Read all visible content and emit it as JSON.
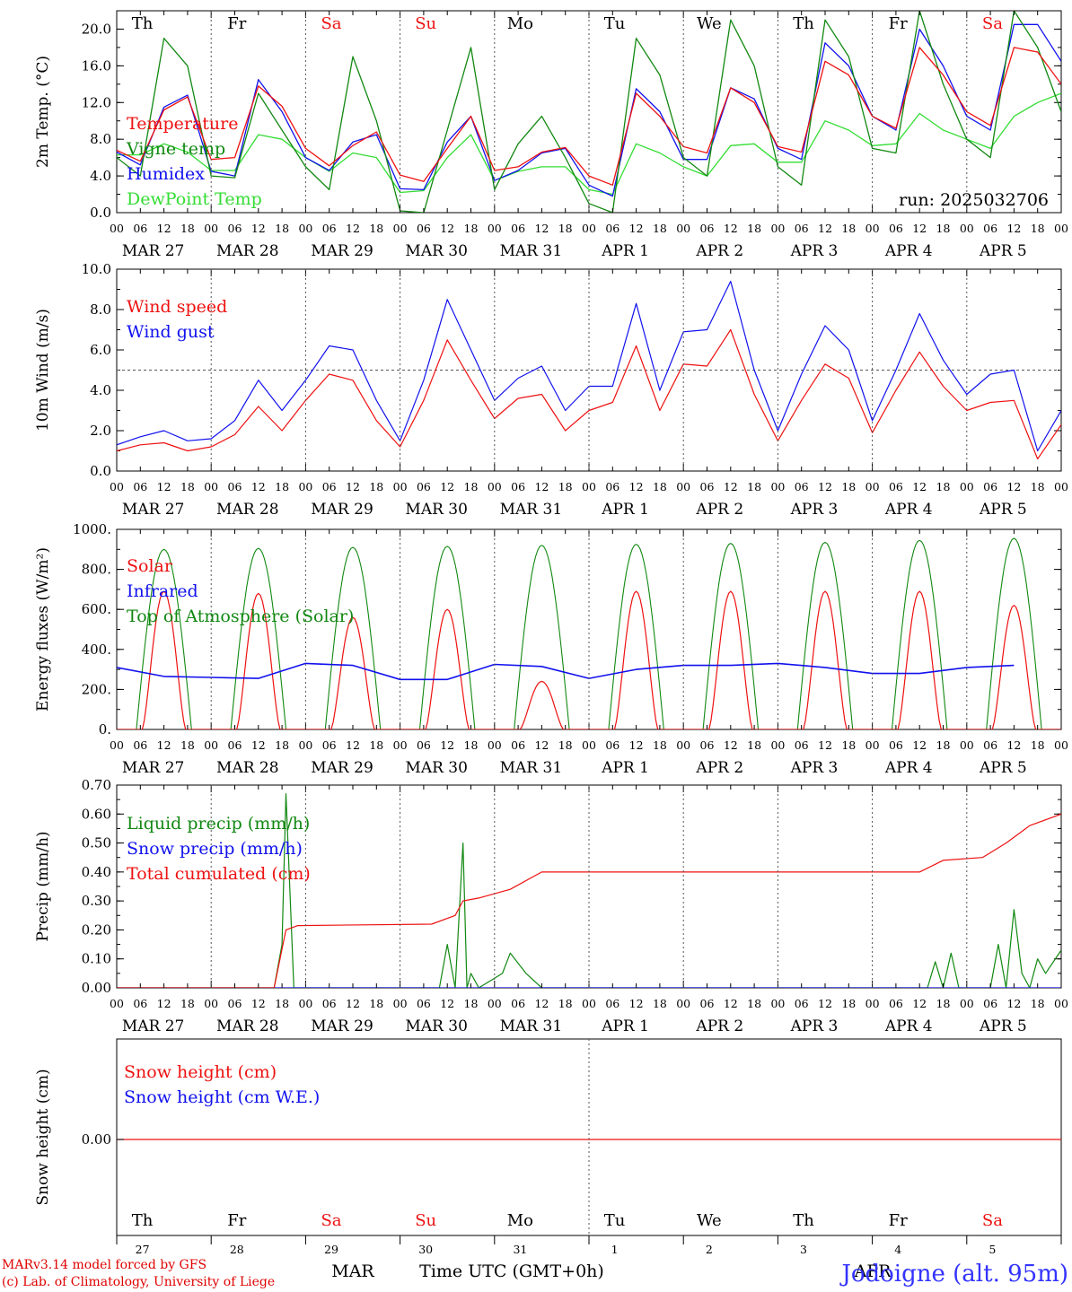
{
  "colors": {
    "red": "#ee1111",
    "green": "#118811",
    "blue": "#1111ee",
    "lightgreen": "#33dd33",
    "weekend": "#ee1111",
    "grid": "#555555"
  },
  "run_label": "run: 2025032706",
  "hours": [
    "00",
    "06",
    "12",
    "18"
  ],
  "date_labels": [
    "MAR 27",
    "MAR 28",
    "MAR 29",
    "MAR 30",
    "MAR 31",
    "APR  1",
    "APR  2",
    "APR  3",
    "APR  4",
    "APR  5"
  ],
  "days": [
    {
      "name": "Th",
      "num": "27",
      "weekend": false
    },
    {
      "name": "Fr",
      "num": "28",
      "weekend": false
    },
    {
      "name": "Sa",
      "num": "29",
      "weekend": true
    },
    {
      "name": "Su",
      "num": "30",
      "weekend": true
    },
    {
      "name": "Mo",
      "num": "31",
      "weekend": false
    },
    {
      "name": "Tu",
      "num": "1",
      "weekend": false
    },
    {
      "name": "We",
      "num": "2",
      "weekend": false
    },
    {
      "name": "Th",
      "num": "3",
      "weekend": false
    },
    {
      "name": "Fr",
      "num": "4",
      "weekend": false
    },
    {
      "name": "Sa",
      "num": "5",
      "weekend": true
    }
  ],
  "footer": {
    "model": "MARv3.14 model forced by GFS",
    "credit": "(c) Lab. of Climatology, University of Liege",
    "month_mar": "MAR",
    "month_apr": "APR",
    "xtitle": "Time UTC (GMT+0h)",
    "location": "Jodoigne (alt. 95m)"
  },
  "chart_data": [
    {
      "type": "line",
      "ylabel": "2m Temp. (°C)",
      "ylim": [
        0,
        22
      ],
      "yticks": [
        "0.0",
        "4.0",
        "8.0",
        "12.0",
        "16.0",
        "20.0"
      ],
      "ytick_values": [
        0,
        4,
        8,
        12,
        16,
        20
      ],
      "legend": [
        {
          "label": "Temperature",
          "color": "red"
        },
        {
          "label": "Vigne temp",
          "color": "green"
        },
        {
          "label": "Humidex",
          "color": "blue"
        },
        {
          "label": "DewPoint Temp",
          "color": "lightgreen"
        }
      ],
      "x_hours": [
        0,
        6,
        12,
        18,
        24,
        30,
        36,
        42,
        48,
        54,
        60,
        66,
        72,
        78,
        84,
        90,
        96,
        102,
        108,
        114,
        120,
        126,
        132,
        138,
        144,
        150,
        156,
        162,
        168,
        174,
        180,
        186,
        192,
        198,
        204,
        210,
        216,
        222,
        228,
        234,
        240
      ],
      "series": [
        {
          "name": "Temperature",
          "color": "red",
          "values": [
            6.8,
            5.6,
            11.2,
            12.6,
            5.8,
            6.0,
            13.8,
            11.6,
            7.0,
            5.1,
            7.3,
            8.8,
            4.1,
            3.4,
            7.0,
            10.5,
            4.6,
            5.0,
            6.6,
            7.1,
            4.0,
            3.0,
            13.0,
            10.5,
            7.2,
            6.5,
            13.6,
            12.0,
            7.2,
            6.6,
            16.5,
            15.0,
            10.5,
            9.2,
            18.0,
            15.0,
            11.0,
            9.5,
            18.0,
            17.5,
            14.0
          ]
        },
        {
          "name": "Vigne temp",
          "color": "green",
          "values": [
            6.0,
            4.0,
            19.0,
            16.0,
            4.0,
            3.8,
            13.0,
            9.0,
            5.0,
            2.5,
            17.0,
            10.0,
            0.2,
            0.0,
            9.0,
            18.0,
            2.5,
            7.5,
            10.5,
            6.0,
            1.0,
            0.0,
            19.0,
            15.0,
            6.0,
            4.0,
            21.0,
            16.0,
            5.0,
            3.0,
            21.0,
            17.0,
            7.0,
            6.5,
            22.0,
            14.0,
            8.0,
            6.0,
            22.0,
            18.0,
            11.0
          ]
        },
        {
          "name": "Humidex",
          "color": "blue",
          "values": [
            6.6,
            5.2,
            11.5,
            12.8,
            4.5,
            4.0,
            14.5,
            11.0,
            6.0,
            4.6,
            7.7,
            8.5,
            2.6,
            2.5,
            7.7,
            10.5,
            3.5,
            4.6,
            6.5,
            7.0,
            3.0,
            1.8,
            13.5,
            11.0,
            5.8,
            5.8,
            13.6,
            12.4,
            7.0,
            5.8,
            18.5,
            16.0,
            10.5,
            9.0,
            20.0,
            16.0,
            10.5,
            9.0,
            20.5,
            20.5,
            16.5
          ]
        },
        {
          "name": "DewPoint Temp",
          "color": "lightgreen",
          "values": [
            6.3,
            6.3,
            7.5,
            6.6,
            4.6,
            4.6,
            8.5,
            8.0,
            6.0,
            4.5,
            6.5,
            6.0,
            2.2,
            2.4,
            6.0,
            8.5,
            3.5,
            4.5,
            5.0,
            5.0,
            2.5,
            2.0,
            7.5,
            6.5,
            5.0,
            4.0,
            7.3,
            7.5,
            5.5,
            5.5,
            10.0,
            9.0,
            7.3,
            7.5,
            10.8,
            9.0,
            8.0,
            7.0,
            10.5,
            12.0,
            13.0
          ]
        }
      ]
    },
    {
      "type": "line",
      "ylabel": "10m Wind (m/s)",
      "ylim": [
        0,
        10
      ],
      "yticks": [
        "0.0",
        "2.0",
        "4.0",
        "6.0",
        "8.0",
        "10.0"
      ],
      "ytick_values": [
        0,
        2,
        4,
        6,
        8,
        10
      ],
      "reference_line": 5.0,
      "legend": [
        {
          "label": "Wind speed",
          "color": "red"
        },
        {
          "label": "Wind gust",
          "color": "blue"
        }
      ],
      "x_hours": [
        0,
        6,
        12,
        18,
        24,
        30,
        36,
        42,
        48,
        54,
        60,
        66,
        72,
        78,
        84,
        90,
        96,
        102,
        108,
        114,
        120,
        126,
        132,
        138,
        144,
        150,
        156,
        162,
        168,
        174,
        180,
        186,
        192,
        198,
        204,
        210,
        216,
        222,
        228,
        234,
        240
      ],
      "series": [
        {
          "name": "Wind speed",
          "color": "red",
          "values": [
            1.0,
            1.3,
            1.4,
            1.0,
            1.2,
            1.8,
            3.2,
            2.0,
            3.5,
            4.8,
            4.5,
            2.5,
            1.2,
            3.5,
            6.5,
            4.5,
            2.6,
            3.6,
            3.8,
            2.0,
            3.0,
            3.4,
            6.2,
            3.0,
            5.3,
            5.2,
            7.0,
            3.8,
            1.5,
            3.5,
            5.3,
            4.6,
            1.9,
            4.0,
            5.9,
            4.2,
            3.0,
            3.4,
            3.5,
            0.6,
            2.3
          ]
        },
        {
          "name": "Wind gust",
          "color": "blue",
          "values": [
            1.3,
            1.7,
            2.0,
            1.5,
            1.6,
            2.5,
            4.5,
            3.0,
            4.5,
            6.2,
            6.0,
            3.5,
            1.5,
            4.5,
            8.5,
            6.0,
            3.5,
            4.6,
            5.2,
            3.0,
            4.2,
            4.2,
            8.3,
            4.0,
            6.9,
            7.0,
            9.4,
            5.0,
            2.0,
            4.8,
            7.2,
            6.0,
            2.5,
            5.0,
            7.8,
            5.5,
            3.8,
            4.8,
            5.0,
            1.0,
            3.0
          ]
        }
      ]
    },
    {
      "type": "line",
      "ylabel": "Energy fluxes (W/m²)",
      "ylim": [
        0,
        1000
      ],
      "yticks": [
        "0.",
        "200.",
        "400.",
        "600.",
        "800.",
        "1000."
      ],
      "ytick_values": [
        0,
        200,
        400,
        600,
        800,
        1000
      ],
      "legend": [
        {
          "label": "Solar",
          "color": "red"
        },
        {
          "label": "Infrared",
          "color": "blue"
        },
        {
          "label": "Top of Atmosphere (Solar)",
          "color": "green"
        }
      ],
      "toa_peaks": [
        900,
        905,
        910,
        915,
        920,
        925,
        930,
        935,
        945,
        955
      ],
      "solar_peaks": [
        690,
        680,
        560,
        600,
        240,
        690,
        690,
        690,
        690,
        620
      ],
      "infrared": [
        310,
        265,
        260,
        255,
        330,
        320,
        250,
        250,
        325,
        315,
        255,
        300,
        320,
        320,
        330,
        310,
        280,
        280,
        310,
        320
      ],
      "series_names": [
        "Solar",
        "Infrared",
        "Top of Atmosphere (Solar)"
      ]
    },
    {
      "type": "line",
      "ylabel": "Precip (mm/h)",
      "ylim": [
        0,
        0.7
      ],
      "yticks": [
        "0.00",
        "0.10",
        "0.20",
        "0.30",
        "0.40",
        "0.50",
        "0.60",
        "0.70"
      ],
      "ytick_values": [
        0,
        0.1,
        0.2,
        0.3,
        0.4,
        0.5,
        0.6,
        0.7
      ],
      "legend": [
        {
          "label": "Liquid precip (mm/h)",
          "color": "green"
        },
        {
          "label": "Snow precip (mm/h)",
          "color": "blue"
        },
        {
          "label": "Total cumulated (cm)",
          "color": "red"
        }
      ],
      "series": [
        {
          "name": "Liquid precip (mm/h)",
          "color": "green",
          "points": [
            [
              0,
              0
            ],
            [
              40,
              0
            ],
            [
              42,
              0.15
            ],
            [
              43,
              0.67
            ],
            [
              45,
              0
            ],
            [
              82,
              0
            ],
            [
              84,
              0.15
            ],
            [
              86,
              0
            ],
            [
              88,
              0.5
            ],
            [
              89,
              0
            ],
            [
              90,
              0.05
            ],
            [
              92,
              0
            ],
            [
              98,
              0.05
            ],
            [
              100,
              0.12
            ],
            [
              104,
              0.05
            ],
            [
              108,
              0
            ],
            [
              206,
              0
            ],
            [
              208,
              0.09
            ],
            [
              210,
              0
            ],
            [
              212,
              0.12
            ],
            [
              214,
              0
            ],
            [
              222,
              0
            ],
            [
              224,
              0.15
            ],
            [
              226,
              0
            ],
            [
              228,
              0.27
            ],
            [
              230,
              0.05
            ],
            [
              232,
              0
            ],
            [
              234,
              0.1
            ],
            [
              236,
              0.05
            ],
            [
              240,
              0.13
            ]
          ]
        },
        {
          "name": "Snow precip (mm/h)",
          "color": "blue",
          "points": [
            [
              0,
              0
            ],
            [
              240,
              0
            ]
          ]
        },
        {
          "name": "Total cumulated (cm)",
          "color": "red",
          "points": [
            [
              0,
              0
            ],
            [
              40,
              0
            ],
            [
              43,
              0.2
            ],
            [
              46,
              0.215
            ],
            [
              80,
              0.22
            ],
            [
              86,
              0.25
            ],
            [
              88,
              0.3
            ],
            [
              92,
              0.31
            ],
            [
              100,
              0.34
            ],
            [
              108,
              0.4
            ],
            [
              204,
              0.4
            ],
            [
              210,
              0.44
            ],
            [
              220,
              0.45
            ],
            [
              226,
              0.5
            ],
            [
              232,
              0.56
            ],
            [
              240,
              0.6
            ]
          ]
        }
      ]
    },
    {
      "type": "line",
      "ylabel": "Snow height (cm)",
      "ytick_label": "0.00",
      "legend": [
        {
          "label": "Snow height (cm)",
          "color": "red"
        },
        {
          "label": "Snow height (cm W.E.)",
          "color": "blue"
        }
      ],
      "series": [
        {
          "name": "Snow height (cm)",
          "color": "red",
          "values": [
            0,
            0
          ]
        },
        {
          "name": "Snow height (cm W.E.)",
          "color": "blue",
          "values": [
            0,
            0
          ]
        }
      ]
    }
  ]
}
